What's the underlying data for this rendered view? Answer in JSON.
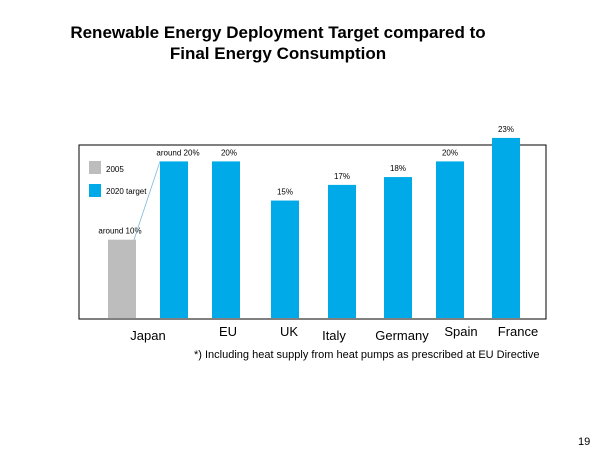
{
  "slide": {
    "title_line1": "Renewable Energy Deployment Target compared to",
    "title_line2": "Final Energy Consumption",
    "footnote": "*) Including heat supply from heat pumps as prescribed at EU Directive",
    "page_number": "19"
  },
  "colors": {
    "bar_2005": "#bdbdbd",
    "bar_2020": "#00a9e8",
    "frame": "#000000"
  },
  "chart_data": {
    "type": "bar",
    "title": "Renewable Energy Deployment Target compared to Final Energy Consumption",
    "xlabel": "",
    "ylabel": "",
    "ylim": [
      0,
      25
    ],
    "grid": false,
    "legend_position": "top-left",
    "legend": [
      "2005",
      "2020 target"
    ],
    "categories": [
      "Japan",
      "EU",
      "UK",
      "Italy",
      "Germany",
      "Spain",
      "France"
    ],
    "bars": [
      {
        "category": "Japan",
        "series": "2005",
        "value": 10,
        "label": "around 10%"
      },
      {
        "category": "Japan",
        "series": "2020 target",
        "value": 20,
        "label": "around 20%"
      },
      {
        "category": "EU",
        "series": "2020 target",
        "value": 20,
        "label": "20%"
      },
      {
        "category": "UK",
        "series": "2020 target",
        "value": 15,
        "label": "15%"
      },
      {
        "category": "Italy",
        "series": "2020 target",
        "value": 17,
        "label": "17%"
      },
      {
        "category": "Germany",
        "series": "2020 target",
        "value": 18,
        "label": "18%"
      },
      {
        "category": "Spain",
        "series": "2020 target",
        "value": 20,
        "label": "20%"
      },
      {
        "category": "France",
        "series": "2020 target",
        "value": 23,
        "label": "23%"
      }
    ]
  }
}
